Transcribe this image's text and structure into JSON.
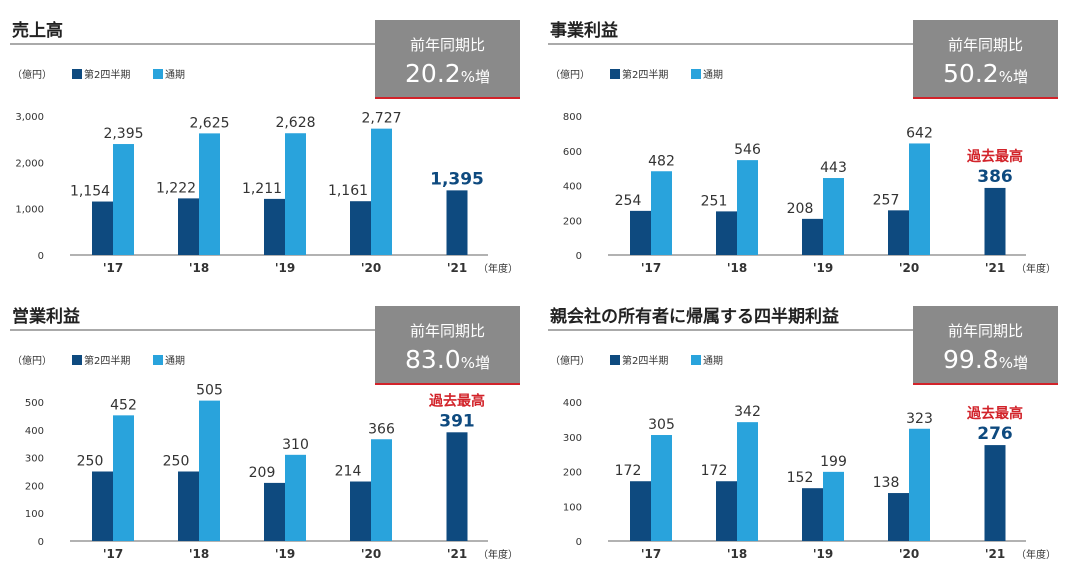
{
  "common": {
    "unit": "（億円）",
    "legend_q2": "第2四半期",
    "legend_full": "通期",
    "year_unit": "（年度）",
    "yoy_label": "前年同期比",
    "record_label": "過去最高",
    "colors": {
      "q2": "#0e4a7f",
      "full": "#29a3dc",
      "yoy_box": "#8a8a8a",
      "yoy_line": "#d2232a",
      "record": "#d2232a"
    }
  },
  "chart_data": [
    {
      "type": "bar",
      "title": "売上高",
      "yoy": {
        "value": "20.2",
        "suffix": "%増"
      },
      "categories": [
        "'17",
        "'18",
        "'19",
        "'20",
        "'21"
      ],
      "series": [
        {
          "name": "第2四半期",
          "values": [
            1154,
            1222,
            1211,
            1161,
            1395
          ],
          "labels": [
            "1,154",
            "1,222",
            "1,211",
            "1,161",
            "1,395"
          ]
        },
        {
          "name": "通期",
          "values": [
            2395,
            2625,
            2628,
            2727,
            null
          ],
          "labels": [
            "2,395",
            "2,625",
            "2,628",
            "2,727",
            ""
          ]
        }
      ],
      "ylim": [
        0,
        3000
      ],
      "yticks": [
        "0",
        "1,000",
        "2,000",
        "3,000"
      ],
      "ytick_values": [
        0,
        1000,
        2000,
        3000
      ],
      "record": false
    },
    {
      "type": "bar",
      "title": "事業利益",
      "yoy": {
        "value": "50.2",
        "suffix": "%増"
      },
      "categories": [
        "'17",
        "'18",
        "'19",
        "'20",
        "'21"
      ],
      "series": [
        {
          "name": "第2四半期",
          "values": [
            254,
            251,
            208,
            257,
            386
          ],
          "labels": [
            "254",
            "251",
            "208",
            "257",
            "386"
          ]
        },
        {
          "name": "通期",
          "values": [
            482,
            546,
            443,
            642,
            null
          ],
          "labels": [
            "482",
            "546",
            "443",
            "642",
            ""
          ]
        }
      ],
      "ylim": [
        0,
        800
      ],
      "yticks": [
        "0",
        "200",
        "400",
        "600",
        "800"
      ],
      "ytick_values": [
        0,
        200,
        400,
        600,
        800
      ],
      "record": true
    },
    {
      "type": "bar",
      "title": "営業利益",
      "yoy": {
        "value": "83.0",
        "suffix": "%増"
      },
      "categories": [
        "'17",
        "'18",
        "'19",
        "'20",
        "'21"
      ],
      "series": [
        {
          "name": "第2四半期",
          "values": [
            250,
            250,
            209,
            214,
            391
          ],
          "labels": [
            "250",
            "250",
            "209",
            "214",
            "391"
          ]
        },
        {
          "name": "通期",
          "values": [
            452,
            505,
            310,
            366,
            null
          ],
          "labels": [
            "452",
            "505",
            "310",
            "366",
            ""
          ]
        }
      ],
      "ylim": [
        0,
        500
      ],
      "yticks": [
        "0",
        "100",
        "200",
        "300",
        "400",
        "500"
      ],
      "ytick_values": [
        0,
        100,
        200,
        300,
        400,
        500
      ],
      "record": true
    },
    {
      "type": "bar",
      "title": "親会社の所有者に帰属する四半期利益",
      "yoy": {
        "value": "99.8",
        "suffix": "%増"
      },
      "categories": [
        "'17",
        "'18",
        "'19",
        "'20",
        "'21"
      ],
      "series": [
        {
          "name": "第2四半期",
          "values": [
            172,
            172,
            152,
            138,
            276
          ],
          "labels": [
            "172",
            "172",
            "152",
            "138",
            "276"
          ]
        },
        {
          "name": "通期",
          "values": [
            305,
            342,
            199,
            323,
            null
          ],
          "labels": [
            "305",
            "342",
            "199",
            "323",
            ""
          ]
        }
      ],
      "ylim": [
        0,
        400
      ],
      "yticks": [
        "0",
        "100",
        "200",
        "300",
        "400"
      ],
      "ytick_values": [
        0,
        100,
        200,
        300,
        400
      ],
      "record": true
    }
  ]
}
